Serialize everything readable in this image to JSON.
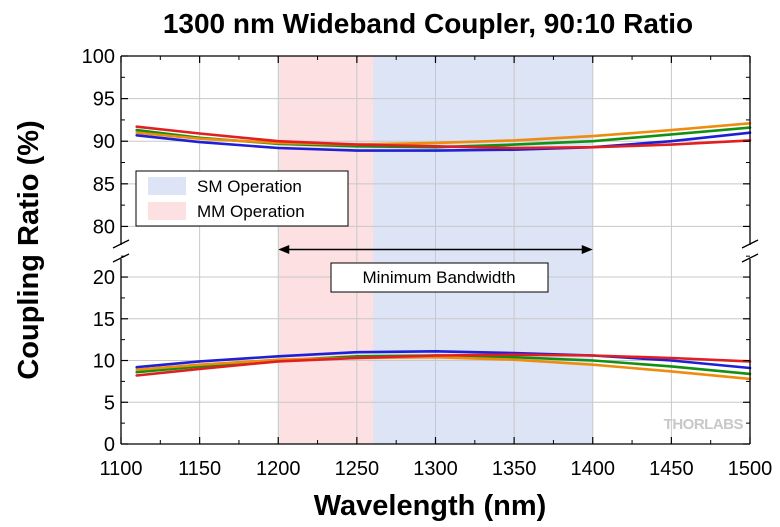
{
  "chart_data": {
    "type": "line",
    "title": "1300 nm Wideband Coupler, 90:10 Ratio",
    "xlabel": "Wavelength (nm)",
    "ylabel": "Coupling Ratio (%)",
    "xlim": [
      1100,
      1500
    ],
    "xticks": [
      1100,
      1150,
      1200,
      1250,
      1300,
      1350,
      1400,
      1450,
      1500
    ],
    "ylim_upper": [
      77,
      100
    ],
    "yticks_upper": [
      80,
      85,
      90,
      95,
      100
    ],
    "ylim_lower": [
      0,
      23
    ],
    "yticks_lower": [
      0,
      5,
      10,
      15,
      20
    ],
    "axis_break": true,
    "grid": true,
    "bands": [
      {
        "label": "SM Operation",
        "range": [
          1260,
          1400
        ],
        "color": "#dce4f5"
      },
      {
        "label": "MM Operation",
        "range": [
          1200,
          1260
        ],
        "color": "#fde0e2"
      }
    ],
    "legend": {
      "position": "left",
      "entries": [
        "SM Operation",
        "MM Operation"
      ]
    },
    "annotation": {
      "text": "Minimum Bandwidth",
      "range": [
        1200,
        1400
      ],
      "y": 23.3
    },
    "series": [
      {
        "color": "#1f1fd6",
        "x": [
          1110,
          1150,
          1200,
          1250,
          1300,
          1350,
          1400,
          1450,
          1500
        ],
        "y": [
          90.7,
          89.9,
          89.2,
          88.9,
          88.9,
          89.0,
          89.3,
          90.0,
          91.0
        ]
      },
      {
        "color": "#1f1fd6",
        "x": [
          1110,
          1150,
          1200,
          1250,
          1300,
          1350,
          1400,
          1450,
          1500
        ],
        "y": [
          9.2,
          9.9,
          10.5,
          11.0,
          11.1,
          10.9,
          10.6,
          10.0,
          9.1
        ]
      },
      {
        "color": "#139013",
        "x": [
          1110,
          1150,
          1200,
          1250,
          1300,
          1350,
          1400,
          1450,
          1500
        ],
        "y": [
          91.3,
          90.4,
          89.7,
          89.4,
          89.3,
          89.6,
          90.0,
          90.8,
          91.6
        ]
      },
      {
        "color": "#139013",
        "x": [
          1110,
          1150,
          1200,
          1250,
          1300,
          1350,
          1400,
          1450,
          1500
        ],
        "y": [
          8.6,
          9.3,
          10.0,
          10.5,
          10.6,
          10.4,
          10.0,
          9.3,
          8.4
        ]
      },
      {
        "color": "#ee8c0e",
        "x": [
          1110,
          1150,
          1200,
          1250,
          1300,
          1350,
          1400,
          1450,
          1500
        ],
        "y": [
          91.0,
          90.3,
          89.8,
          89.6,
          89.8,
          90.1,
          90.6,
          91.3,
          92.1
        ]
      },
      {
        "color": "#ee8c0e",
        "x": [
          1110,
          1150,
          1200,
          1250,
          1300,
          1350,
          1400,
          1450,
          1500
        ],
        "y": [
          8.9,
          9.5,
          10.1,
          10.3,
          10.4,
          10.1,
          9.5,
          8.7,
          7.8
        ]
      },
      {
        "color": "#e02020",
        "x": [
          1110,
          1150,
          1200,
          1250,
          1300,
          1350,
          1400,
          1450,
          1500
        ],
        "y": [
          91.7,
          90.9,
          90.0,
          89.6,
          89.4,
          89.2,
          89.3,
          89.6,
          90.1
        ]
      },
      {
        "color": "#e02020",
        "x": [
          1110,
          1150,
          1200,
          1250,
          1300,
          1350,
          1400,
          1450,
          1500
        ],
        "y": [
          8.2,
          9.0,
          9.9,
          10.3,
          10.6,
          10.7,
          10.6,
          10.3,
          9.9
        ]
      }
    ]
  },
  "watermark": "THORLABS"
}
